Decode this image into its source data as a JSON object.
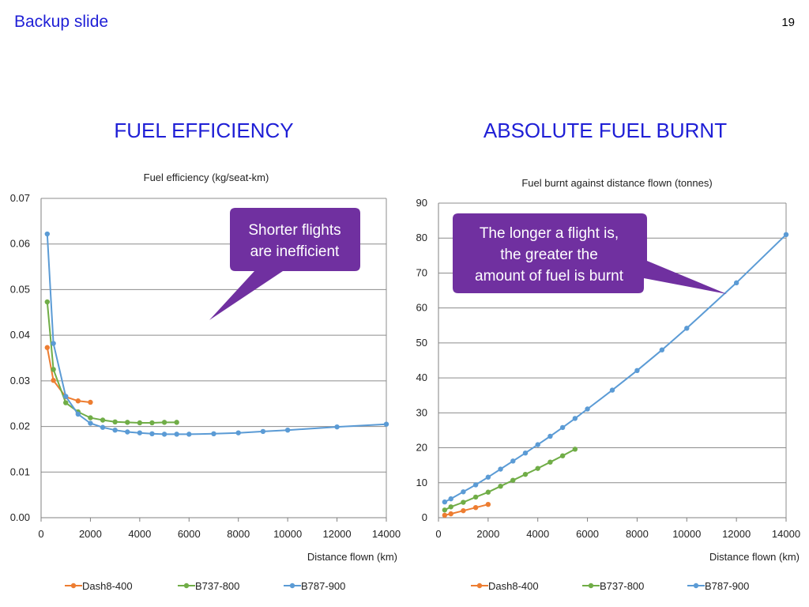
{
  "slide": {
    "label": "Backup slide",
    "page_number": "19"
  },
  "headings": {
    "left": "FUEL EFFICIENCY",
    "right": "ABSOLUTE FUEL BURNT"
  },
  "callouts": {
    "left": [
      "Shorter flights",
      "are inefficient"
    ],
    "right": [
      "The longer a flight is,",
      "the greater the",
      "amount of fuel is burnt"
    ],
    "fill_color": "#7030a0"
  },
  "chart_data": [
    {
      "type": "line",
      "title": "Fuel efficiency (kg/seat-km)",
      "xlabel": "Distance flown (km)",
      "ylabel": "",
      "xlim": [
        0,
        14000
      ],
      "ylim": [
        0,
        0.07
      ],
      "x_ticks": [
        "0",
        "2000",
        "4000",
        "6000",
        "8000",
        "10000",
        "12000",
        "14000"
      ],
      "y_ticks": [
        "0.00",
        "0.01",
        "0.02",
        "0.03",
        "0.04",
        "0.05",
        "0.06",
        "0.07"
      ],
      "grid": "horizontal",
      "legend_position": "bottom",
      "series": [
        {
          "name": "Dash8-400",
          "color": "#ed7d31",
          "x": [
            250,
            500,
            1000,
            1500,
            2000
          ],
          "y": [
            0.0373,
            0.0301,
            0.0265,
            0.0256,
            0.0253
          ]
        },
        {
          "name": "B737-800",
          "color": "#70ad47",
          "x": [
            250,
            500,
            1000,
            1500,
            2000,
            2500,
            3000,
            3500,
            4000,
            4500,
            5000,
            5500
          ],
          "y": [
            0.0473,
            0.0325,
            0.0252,
            0.0232,
            0.0219,
            0.0214,
            0.021,
            0.0209,
            0.0208,
            0.0208,
            0.0209,
            0.0209
          ]
        },
        {
          "name": "B787-900",
          "color": "#5b9bd5",
          "x": [
            250,
            500,
            1000,
            1500,
            2000,
            2500,
            3000,
            3500,
            4000,
            4500,
            5000,
            5500,
            6000,
            7000,
            8000,
            9000,
            10000,
            12000,
            14000
          ],
          "y": [
            0.0622,
            0.0382,
            0.0266,
            0.0227,
            0.0207,
            0.0198,
            0.0192,
            0.0188,
            0.0186,
            0.0184,
            0.0183,
            0.0183,
            0.0183,
            0.0184,
            0.0186,
            0.0189,
            0.0192,
            0.0199,
            0.0205
          ]
        }
      ]
    },
    {
      "type": "line",
      "title": "Fuel burnt against distance flown (tonnes)",
      "xlabel": "Distance flown (km)",
      "ylabel": "",
      "xlim": [
        0,
        14000
      ],
      "ylim": [
        0,
        90
      ],
      "x_ticks": [
        "0",
        "2000",
        "4000",
        "6000",
        "8000",
        "10000",
        "12000",
        "14000"
      ],
      "y_ticks": [
        "0",
        "10",
        "20",
        "30",
        "40",
        "50",
        "60",
        "70",
        "80",
        "90"
      ],
      "grid": "horizontal",
      "legend_position": "bottom",
      "series": [
        {
          "name": "Dash8-400",
          "color": "#ed7d31",
          "x": [
            250,
            500,
            1000,
            1500,
            2000
          ],
          "y": [
            0.7,
            1.1,
            2.0,
            2.9,
            3.8
          ]
        },
        {
          "name": "B737-800",
          "color": "#70ad47",
          "x": [
            250,
            500,
            1000,
            1500,
            2000,
            2500,
            3000,
            3500,
            4000,
            4500,
            5000,
            5500
          ],
          "y": [
            2.2,
            3.1,
            4.4,
            5.9,
            7.3,
            9.0,
            10.7,
            12.4,
            14.1,
            15.9,
            17.7,
            19.6
          ]
        },
        {
          "name": "B787-900",
          "color": "#5b9bd5",
          "x": [
            250,
            500,
            1000,
            1500,
            2000,
            2500,
            3000,
            3500,
            4000,
            4500,
            5000,
            5500,
            6000,
            7000,
            8000,
            9000,
            10000,
            12000,
            14000
          ],
          "y": [
            4.5,
            5.4,
            7.4,
            9.4,
            11.6,
            13.9,
            16.2,
            18.5,
            20.9,
            23.3,
            25.8,
            28.4,
            31.1,
            36.5,
            42.1,
            48.0,
            54.2,
            67.2,
            81.0
          ]
        }
      ]
    }
  ]
}
